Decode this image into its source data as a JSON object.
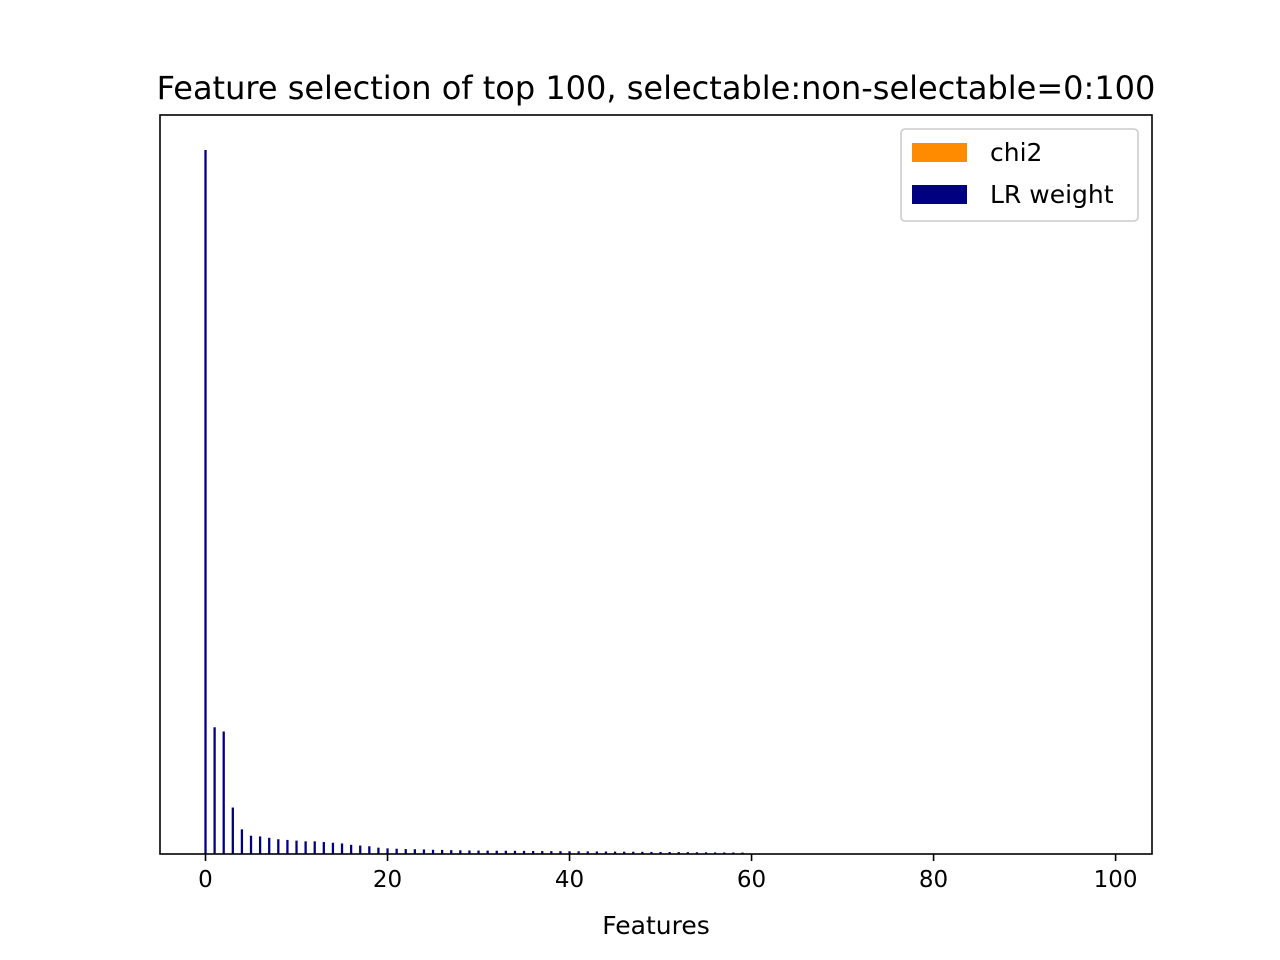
{
  "chart_data": {
    "type": "bar",
    "title": "Feature selection of top 100, selectable:non-selectable=0:100",
    "xlabel": "Features",
    "ylabel": "",
    "xlim": [
      -5,
      104
    ],
    "ylim": [
      0,
      1.0
    ],
    "x_ticks": [
      0,
      20,
      40,
      60,
      80,
      100
    ],
    "x_tick_labels": [
      "0",
      "20",
      "40",
      "60",
      "80",
      "100"
    ],
    "y_ticks_visible": false,
    "grid": false,
    "legend_position": "upper right",
    "series": [
      {
        "name": "chi2",
        "color": "#ff8c00",
        "values": []
      },
      {
        "name": "LR weight",
        "color": "#000080",
        "x": [
          0,
          1,
          2,
          3,
          4,
          5,
          6,
          7,
          8,
          9,
          10,
          11,
          12,
          13,
          14,
          15,
          16,
          17,
          18,
          19,
          20,
          21,
          22,
          23,
          24,
          25,
          26,
          27,
          28,
          29,
          30,
          31,
          32,
          33,
          34,
          35,
          36,
          37,
          38,
          39,
          40,
          41,
          42,
          43,
          44,
          45,
          46,
          47,
          48,
          49,
          50,
          51,
          52,
          53,
          54,
          55,
          56,
          57,
          58,
          59
        ],
        "values": [
          1.0,
          0.18,
          0.174,
          0.066,
          0.035,
          0.026,
          0.025,
          0.023,
          0.021,
          0.02,
          0.019,
          0.018,
          0.018,
          0.017,
          0.016,
          0.015,
          0.013,
          0.012,
          0.011,
          0.009,
          0.008,
          0.0075,
          0.007,
          0.0068,
          0.0065,
          0.006,
          0.0058,
          0.0055,
          0.0053,
          0.005,
          0.0049,
          0.0048,
          0.0047,
          0.0046,
          0.0045,
          0.0044,
          0.0043,
          0.0042,
          0.0041,
          0.004,
          0.0039,
          0.0038,
          0.0037,
          0.0036,
          0.0035,
          0.0034,
          0.0033,
          0.0032,
          0.0031,
          0.003,
          0.0029,
          0.0028,
          0.0027,
          0.0026,
          0.0025,
          0.0024,
          0.0023,
          0.0022,
          0.0021,
          0.002
        ]
      }
    ]
  }
}
